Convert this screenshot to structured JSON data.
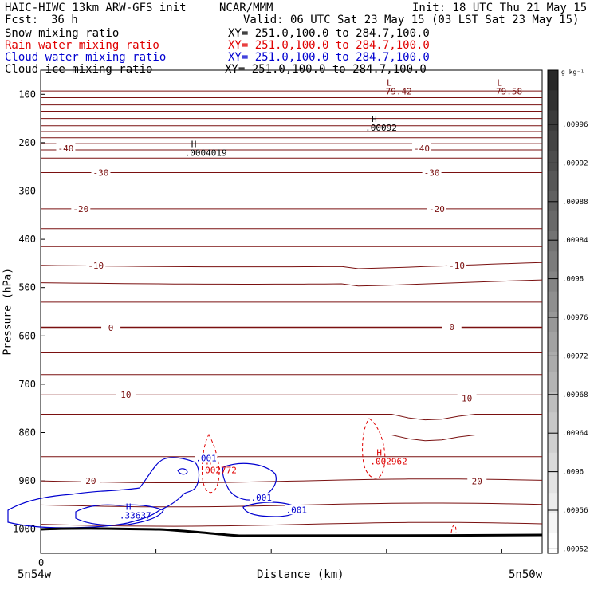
{
  "header": {
    "title_left": "HAIC-HIWC 13km ARW-GFS init",
    "org": "NCAR/MMM",
    "init": "Init: 18 UTC Thu 21 May 15",
    "fcst_label": "Fcst:",
    "fcst_value": "36 h",
    "valid": "Valid: 06 UTC Sat 23 May 15 (03 LST Sat 23 May 15)",
    "fields": [
      {
        "name": "Snow mixing ratio",
        "xy": "XY= 251.0,100.0 to 284.7,100.0",
        "color": "#000000"
      },
      {
        "name": "Rain water mixing ratio",
        "xy": "XY= 251.0,100.0 to 284.7,100.0",
        "color": "#e00000"
      },
      {
        "name": "Cloud water mixing ratio",
        "xy": "XY= 251.0,100.0 to 284.7,100.0",
        "color": "#0000d0"
      },
      {
        "name": "Cloud ice mixing ratio",
        "xy": "XY= 251.0,100.0 to 284.7,100.0",
        "color": "#000000"
      }
    ]
  },
  "colors": {
    "temperature": "#7a1010",
    "rain": "#e00000",
    "cloud": "#0000d0",
    "ice": "#000000",
    "terrain": "#000000"
  },
  "chart_data": {
    "type": "contour-cross-section",
    "ylabel": "Pressure (hPa)",
    "xlabel": "Distance (km)",
    "x_start_label": "5n54w",
    "x_end_label": "5n50w",
    "x_zero_label": "0",
    "ylim": [
      1050,
      50
    ],
    "yticks": [
      100,
      200,
      300,
      400,
      500,
      600,
      700,
      800,
      900,
      1000
    ],
    "temperature_labels": [
      {
        "value": "-40",
        "x": 0.05,
        "p": 212
      },
      {
        "value": "-40",
        "x": 0.76,
        "p": 212
      },
      {
        "value": "-30",
        "x": 0.12,
        "p": 262
      },
      {
        "value": "-30",
        "x": 0.78,
        "p": 262
      },
      {
        "value": "-20",
        "x": 0.08,
        "p": 337
      },
      {
        "value": "-20",
        "x": 0.79,
        "p": 337
      },
      {
        "value": "-10",
        "x": 0.11,
        "p": 454
      },
      {
        "value": "-10",
        "x": 0.83,
        "p": 454
      },
      {
        "value": "0",
        "x": 0.14,
        "p": 583
      },
      {
        "value": "0",
        "x": 0.82,
        "p": 581
      },
      {
        "value": "10",
        "x": 0.17,
        "p": 722
      },
      {
        "value": "10",
        "x": 0.85,
        "p": 729
      },
      {
        "value": "20",
        "x": 0.1,
        "p": 900
      },
      {
        "value": "20",
        "x": 0.87,
        "p": 901
      }
    ],
    "extrema": [
      {
        "kind": "L",
        "value": "-79.42",
        "x": 0.69,
        "p": 82,
        "color": "#7a1010"
      },
      {
        "kind": "L",
        "value": "-79.58",
        "x": 0.91,
        "p": 82,
        "color": "#7a1010"
      },
      {
        "kind": "H",
        "value": ".00092",
        "x": 0.66,
        "p": 157,
        "color": "#000000"
      },
      {
        "kind": "H",
        "value": ".0004019",
        "x": 0.3,
        "p": 209,
        "color": "#000000"
      },
      {
        "kind": "H",
        "value": ".002772",
        "x": 0.33,
        "p": 866,
        "color": "#e00000"
      },
      {
        "kind": "H",
        "value": ".002962",
        "x": 0.67,
        "p": 848,
        "color": "#e00000"
      },
      {
        "kind": "H",
        "value": ".33637",
        "x": 0.17,
        "p": 960,
        "color": "#0000d0"
      }
    ],
    "cloud_labels": [
      {
        "value": ".001",
        "x": 0.33,
        "p": 856
      },
      {
        "value": ".001",
        "x": 0.44,
        "p": 938
      },
      {
        "value": ".001",
        "x": 0.51,
        "p": 963
      }
    ],
    "colorbar": {
      "unit": "g kg⁻¹",
      "labels": [
        ".00996",
        ".00992",
        ".00988",
        ".00984",
        ".0098",
        ".00976",
        ".00972",
        ".00968",
        ".00964",
        ".0096",
        ".00956",
        ".00952"
      ]
    }
  }
}
